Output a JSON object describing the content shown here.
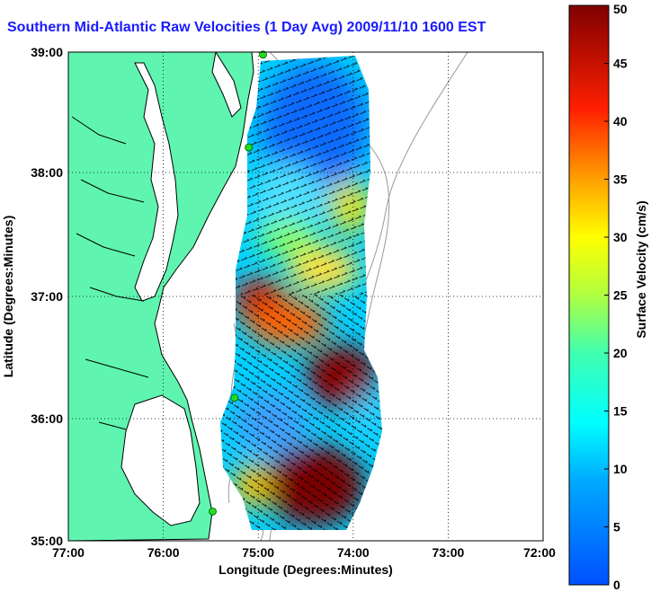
{
  "title": "Southern Mid-Atlantic Raw Velocities (1 Day Avg) 2009/11/10 1600 EST",
  "map": {
    "xlabel": "Longitude (Degrees:Minutes)",
    "ylabel": "Latitude (Degrees:Minutes)",
    "lon_ticks": [
      "77:00",
      "76:00",
      "75:00",
      "74:00",
      "73:00",
      "72:00"
    ],
    "lat_ticks": [
      "35:00",
      "36:00",
      "37:00",
      "38:00",
      "39:00"
    ],
    "lon_range": [
      -77,
      -72
    ],
    "lat_range": [
      35,
      39
    ],
    "grid": true,
    "land_color": "#5ff5b0",
    "coast_color": "#000000",
    "station_color": "#22dd22",
    "stations": [
      {
        "lon": -74.95,
        "lat": 38.98
      },
      {
        "lon": -75.1,
        "lat": 38.22
      },
      {
        "lon": -75.25,
        "lat": 36.17
      },
      {
        "lon": -75.48,
        "lat": 35.24
      }
    ]
  },
  "colorbar": {
    "label": "Surface Velocity (cm/s)",
    "min": 0,
    "max": 50,
    "ticks": [
      "0",
      "5",
      "10",
      "15",
      "20",
      "25",
      "30",
      "35",
      "40",
      "45",
      "50"
    ],
    "colormap": "jet"
  },
  "chart_data": {
    "type": "heatmap",
    "title": "Southern Mid-Atlantic Raw Velocities (1 Day Avg) 2009/11/10 1600 EST",
    "xlabel": "Longitude (Degrees:Minutes)",
    "ylabel": "Latitude (Degrees:Minutes)",
    "x_range": [
      -77,
      -72
    ],
    "y_range": [
      35,
      39
    ],
    "value_label": "Surface Velocity (cm/s)",
    "value_range": [
      0,
      50
    ],
    "regions": [
      {
        "lon": -74.6,
        "lat": 38.6,
        "speed": 6
      },
      {
        "lon": -74.4,
        "lat": 38.1,
        "speed": 8
      },
      {
        "lon": -74.1,
        "lat": 37.8,
        "speed": 28
      },
      {
        "lon": -74.7,
        "lat": 37.5,
        "speed": 18
      },
      {
        "lon": -74.9,
        "lat": 37.1,
        "speed": 32
      },
      {
        "lon": -75.0,
        "lat": 36.9,
        "speed": 45
      },
      {
        "lon": -74.4,
        "lat": 36.4,
        "speed": 48
      },
      {
        "lon": -74.9,
        "lat": 36.0,
        "speed": 10
      },
      {
        "lon": -74.3,
        "lat": 35.5,
        "speed": 50
      },
      {
        "lon": -75.0,
        "lat": 35.6,
        "speed": 14
      }
    ]
  }
}
